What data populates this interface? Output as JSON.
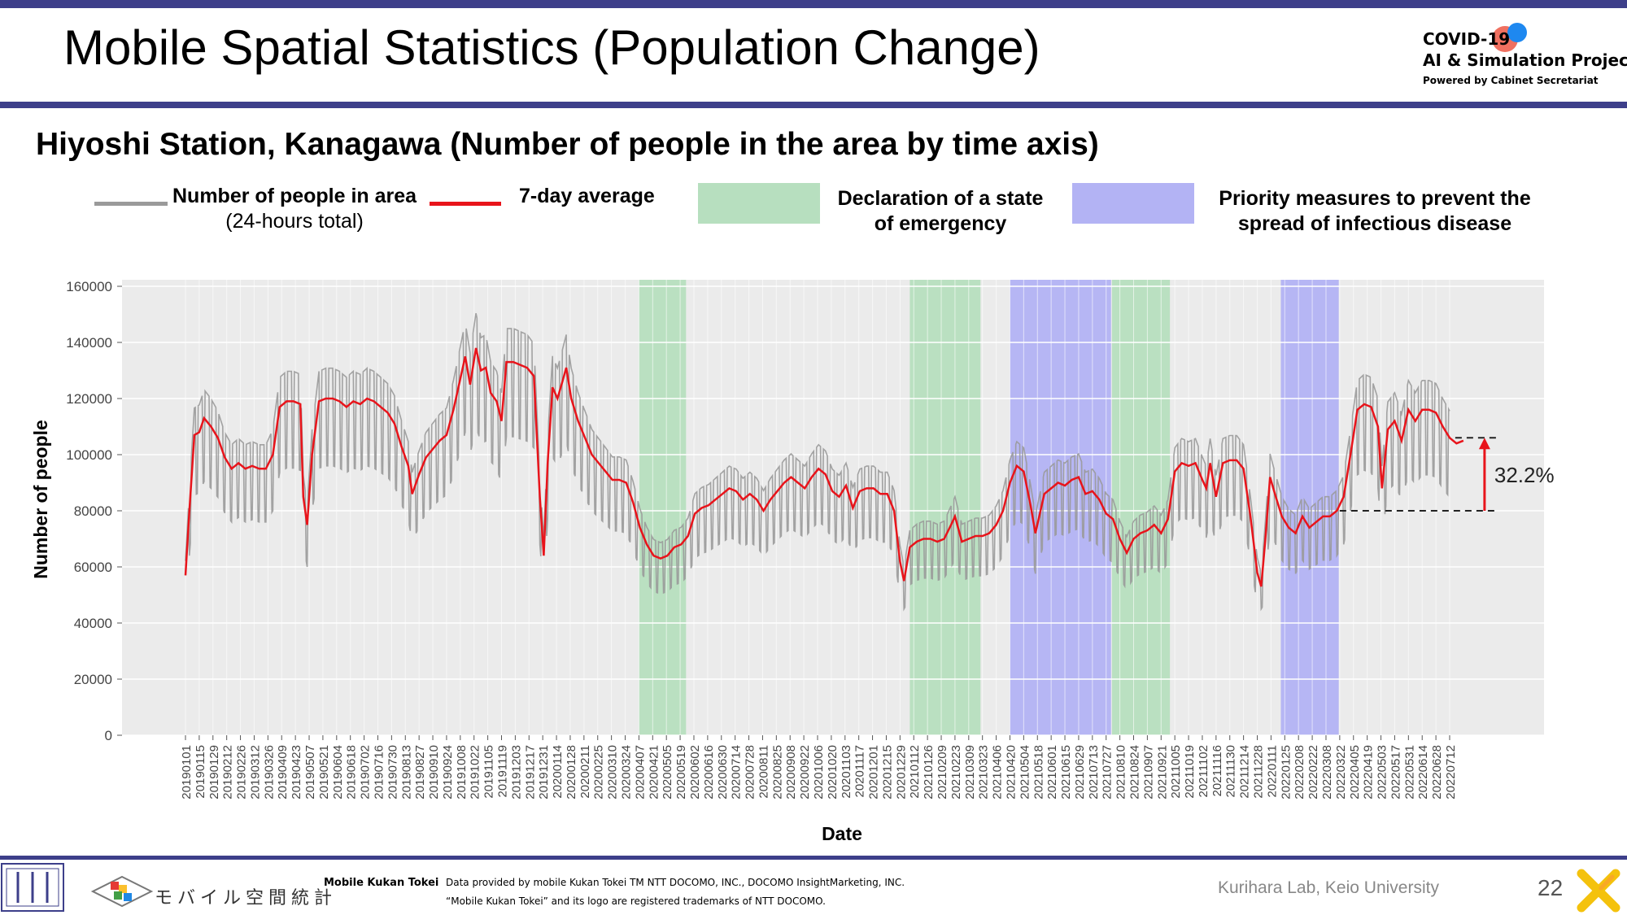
{
  "slide": {
    "title": "Mobile Spatial Statistics (Population Change)",
    "logo": {
      "line1": "COVID-19",
      "line2": "AI & Simulation Project",
      "line3": "Powered by Cabinet Secretariat"
    },
    "page_number": "22"
  },
  "legend": {
    "people": {
      "label": "Number of people in area",
      "sublabel": "(24-hours total)",
      "color": "#9a9a9a"
    },
    "avg": {
      "label": "7-day average",
      "color": "#e8141b"
    },
    "emergency": {
      "label_line1": "Declaration of a state",
      "label_line2": "of emergency",
      "color": "#b7dfbf"
    },
    "priority": {
      "label_line1": "Priority measures to prevent the",
      "label_line2": "spread of infectious disease",
      "color": "#b3b3f4"
    }
  },
  "colors": {
    "accent": "#3d3f8a",
    "plot_bg": "#ebebeb",
    "red": "#e8141b",
    "gray": "#9a9a9a"
  },
  "chart_data": {
    "type": "line",
    "title": "Hiyoshi Station, Kanagawa (Number of people in the area by time axis)",
    "xlabel": "Date",
    "ylabel": "Number of people",
    "ylim": [
      0,
      160000
    ],
    "yticks": [
      0,
      20000,
      40000,
      60000,
      80000,
      100000,
      120000,
      140000,
      160000
    ],
    "grid": true,
    "legend_position": "top",
    "x_range": [
      "20190101",
      "20220726"
    ],
    "x_tick_labels": [
      "20190101",
      "20190115",
      "20190129",
      "20190212",
      "20190226",
      "20190312",
      "20190326",
      "20190409",
      "20190423",
      "20190507",
      "20190521",
      "20190604",
      "20190618",
      "20190702",
      "20190716",
      "20190730",
      "20190813",
      "20190827",
      "20190910",
      "20190924",
      "20191008",
      "20191022",
      "20191105",
      "20191119",
      "20191203",
      "20191217",
      "20191231",
      "20200114",
      "20200128",
      "20200211",
      "20200225",
      "20200310",
      "20200324",
      "20200407",
      "20200421",
      "20200505",
      "20200519",
      "20200602",
      "20200616",
      "20200630",
      "20200714",
      "20200728",
      "20200811",
      "20200825",
      "20200908",
      "20200922",
      "20201006",
      "20201020",
      "20201103",
      "20201117",
      "20201201",
      "20201215",
      "20201229",
      "20210112",
      "20210126",
      "20210209",
      "20210223",
      "20210309",
      "20210323",
      "20210406",
      "20210420",
      "20210504",
      "20210518",
      "20210601",
      "20210615",
      "20210629",
      "20210713",
      "20210727",
      "20210810",
      "20210824",
      "20210907",
      "20210921",
      "20211005",
      "20211019",
      "20211102",
      "20211116",
      "20211130",
      "20211214",
      "20211228",
      "20220111",
      "20220125",
      "20220208",
      "20220222",
      "20220308",
      "20220322",
      "20220405",
      "20220419",
      "20220503",
      "20220517",
      "20220531",
      "20220614",
      "20220628",
      "20220712"
    ],
    "series": [
      {
        "name": "7-day average",
        "color": "#e8141b",
        "points": [
          [
            "20190101",
            57000
          ],
          [
            "20190105",
            80000
          ],
          [
            "20190110",
            107000
          ],
          [
            "20190115",
            108000
          ],
          [
            "20190120",
            113000
          ],
          [
            "20190127",
            110000
          ],
          [
            "20190203",
            106000
          ],
          [
            "20190210",
            99000
          ],
          [
            "20190217",
            95000
          ],
          [
            "20190224",
            97000
          ],
          [
            "20190303",
            95000
          ],
          [
            "20190310",
            96000
          ],
          [
            "20190317",
            95000
          ],
          [
            "20190324",
            95000
          ],
          [
            "20190331",
            100000
          ],
          [
            "20190407",
            117000
          ],
          [
            "20190414",
            119000
          ],
          [
            "20190421",
            119000
          ],
          [
            "20190428",
            118000
          ],
          [
            "20190501",
            85000
          ],
          [
            "20190505",
            75000
          ],
          [
            "20190510",
            100000
          ],
          [
            "20190517",
            119000
          ],
          [
            "20190524",
            120000
          ],
          [
            "20190531",
            120000
          ],
          [
            "20190607",
            119000
          ],
          [
            "20190614",
            117000
          ],
          [
            "20190621",
            119000
          ],
          [
            "20190628",
            118000
          ],
          [
            "20190705",
            120000
          ],
          [
            "20190712",
            119000
          ],
          [
            "20190719",
            117000
          ],
          [
            "20190726",
            115000
          ],
          [
            "20190802",
            111000
          ],
          [
            "20190809",
            103000
          ],
          [
            "20190816",
            96000
          ],
          [
            "20190820",
            86000
          ],
          [
            "20190827",
            93000
          ],
          [
            "20190903",
            99000
          ],
          [
            "20190910",
            102000
          ],
          [
            "20190917",
            105000
          ],
          [
            "20190924",
            107000
          ],
          [
            "20191001",
            116000
          ],
          [
            "20191008",
            127000
          ],
          [
            "20191013",
            135000
          ],
          [
            "20191018",
            125000
          ],
          [
            "20191024",
            138000
          ],
          [
            "20191029",
            130000
          ],
          [
            "20191103",
            131000
          ],
          [
            "20191108",
            122000
          ],
          [
            "20191114",
            119000
          ],
          [
            "20191119",
            112000
          ],
          [
            "20191124",
            133000
          ],
          [
            "20191201",
            133000
          ],
          [
            "20191208",
            132000
          ],
          [
            "20191215",
            131000
          ],
          [
            "20191222",
            128000
          ],
          [
            "20191228",
            85000
          ],
          [
            "20200101",
            64000
          ],
          [
            "20200105",
            97000
          ],
          [
            "20200110",
            124000
          ],
          [
            "20200115",
            120000
          ],
          [
            "20200120",
            126000
          ],
          [
            "20200124",
            131000
          ],
          [
            "20200129",
            120000
          ],
          [
            "20200205",
            112000
          ],
          [
            "20200212",
            106000
          ],
          [
            "20200219",
            100000
          ],
          [
            "20200226",
            97000
          ],
          [
            "20200304",
            94000
          ],
          [
            "20200311",
            91000
          ],
          [
            "20200318",
            91000
          ],
          [
            "20200325",
            90000
          ],
          [
            "20200401",
            83000
          ],
          [
            "20200408",
            74000
          ],
          [
            "20200415",
            68000
          ],
          [
            "20200422",
            64000
          ],
          [
            "20200429",
            63000
          ],
          [
            "20200506",
            64000
          ],
          [
            "20200513",
            67000
          ],
          [
            "20200520",
            68000
          ],
          [
            "20200527",
            71000
          ],
          [
            "20200603",
            79000
          ],
          [
            "20200610",
            81000
          ],
          [
            "20200617",
            82000
          ],
          [
            "20200624",
            84000
          ],
          [
            "20200701",
            86000
          ],
          [
            "20200708",
            88000
          ],
          [
            "20200715",
            87000
          ],
          [
            "20200722",
            84000
          ],
          [
            "20200729",
            86000
          ],
          [
            "20200805",
            84000
          ],
          [
            "20200812",
            80000
          ],
          [
            "20200819",
            84000
          ],
          [
            "20200826",
            87000
          ],
          [
            "20200902",
            90000
          ],
          [
            "20200909",
            92000
          ],
          [
            "20200916",
            90000
          ],
          [
            "20200923",
            88000
          ],
          [
            "20200930",
            92000
          ],
          [
            "20201007",
            95000
          ],
          [
            "20201014",
            93000
          ],
          [
            "20201021",
            87000
          ],
          [
            "20201028",
            85000
          ],
          [
            "20201104",
            89000
          ],
          [
            "20201111",
            81000
          ],
          [
            "20201118",
            87000
          ],
          [
            "20201125",
            88000
          ],
          [
            "20201202",
            88000
          ],
          [
            "20201209",
            86000
          ],
          [
            "20201216",
            86000
          ],
          [
            "20201223",
            80000
          ],
          [
            "20201229",
            62000
          ],
          [
            "20210102",
            55000
          ],
          [
            "20210108",
            67000
          ],
          [
            "20210115",
            69000
          ],
          [
            "20210122",
            70000
          ],
          [
            "20210129",
            70000
          ],
          [
            "20210205",
            69000
          ],
          [
            "20210212",
            70000
          ],
          [
            "20210219",
            75000
          ],
          [
            "20210223",
            78000
          ],
          [
            "20210302",
            69000
          ],
          [
            "20210309",
            70000
          ],
          [
            "20210316",
            71000
          ],
          [
            "20210323",
            71000
          ],
          [
            "20210330",
            72000
          ],
          [
            "20210406",
            75000
          ],
          [
            "20210413",
            80000
          ],
          [
            "20210420",
            90000
          ],
          [
            "20210427",
            96000
          ],
          [
            "20210504",
            94000
          ],
          [
            "20210511",
            82000
          ],
          [
            "20210516",
            72000
          ],
          [
            "20210525",
            86000
          ],
          [
            "20210601",
            88000
          ],
          [
            "20210608",
            90000
          ],
          [
            "20210615",
            89000
          ],
          [
            "20210622",
            91000
          ],
          [
            "20210629",
            92000
          ],
          [
            "20210706",
            86000
          ],
          [
            "20210713",
            87000
          ],
          [
            "20210720",
            84000
          ],
          [
            "20210727",
            79000
          ],
          [
            "20210803",
            77000
          ],
          [
            "20210810",
            70000
          ],
          [
            "20210817",
            65000
          ],
          [
            "20210824",
            70000
          ],
          [
            "20210831",
            72000
          ],
          [
            "20210907",
            73000
          ],
          [
            "20210914",
            75000
          ],
          [
            "20210921",
            72000
          ],
          [
            "20210928",
            77000
          ],
          [
            "20211005",
            94000
          ],
          [
            "20211012",
            97000
          ],
          [
            "20211019",
            96000
          ],
          [
            "20211026",
            97000
          ],
          [
            "20211102",
            91000
          ],
          [
            "20211106",
            88000
          ],
          [
            "20211110",
            97000
          ],
          [
            "20211116",
            85000
          ],
          [
            "20211123",
            97000
          ],
          [
            "20211130",
            98000
          ],
          [
            "20211207",
            98000
          ],
          [
            "20211214",
            95000
          ],
          [
            "20211221",
            78000
          ],
          [
            "20211228",
            58000
          ],
          [
            "20220101",
            53000
          ],
          [
            "20220105",
            69000
          ],
          [
            "20220110",
            92000
          ],
          [
            "20220115",
            86000
          ],
          [
            "20220122",
            78000
          ],
          [
            "20220129",
            74000
          ],
          [
            "20220205",
            72000
          ],
          [
            "20220212",
            78000
          ],
          [
            "20220219",
            74000
          ],
          [
            "20220226",
            76000
          ],
          [
            "20220305",
            78000
          ],
          [
            "20220312",
            78000
          ],
          [
            "20220319",
            80000
          ],
          [
            "20220326",
            85000
          ],
          [
            "20220402",
            100000
          ],
          [
            "20220409",
            116000
          ],
          [
            "20220416",
            118000
          ],
          [
            "20220423",
            117000
          ],
          [
            "20220430",
            110000
          ],
          [
            "20220504",
            88000
          ],
          [
            "20220510",
            109000
          ],
          [
            "20220517",
            112000
          ],
          [
            "20220524",
            105000
          ],
          [
            "20220531",
            116000
          ],
          [
            "20220607",
            112000
          ],
          [
            "20220614",
            116000
          ],
          [
            "20220621",
            116000
          ],
          [
            "20220628",
            115000
          ],
          [
            "20220705",
            110000
          ],
          [
            "20220712",
            106000
          ],
          [
            "20220719",
            104000
          ],
          [
            "20220726",
            105000
          ]
        ]
      }
    ],
    "raw_series": {
      "name": "Number of people in area (24-hours total)",
      "color": "#9a9a9a",
      "weekday_weekend_spread_approx": [
        45000,
        155000
      ]
    },
    "shaded_periods": [
      {
        "type": "Declaration of a state of emergency",
        "start": "20200407",
        "end": "20200525"
      },
      {
        "type": "Declaration of a state of emergency",
        "start": "20210108",
        "end": "20210321"
      },
      {
        "type": "Priority measures to prevent the spread of infectious disease",
        "start": "20210420",
        "end": "20210801"
      },
      {
        "type": "Declaration of a state of emergency",
        "start": "20210802",
        "end": "20210930"
      },
      {
        "type": "Priority measures to prevent the spread of infectious disease",
        "start": "20220121",
        "end": "20220321"
      }
    ],
    "annotations": [
      {
        "text": "32.2%",
        "from_value": 80000,
        "to_value": 106000,
        "from_date": "20220322",
        "to_date": "20220726"
      }
    ]
  },
  "footer": {
    "brand": "Mobile Kukan Tokei",
    "credit_line1": "Data provided by mobile Kukan Tokei TM NTT DOCOMO, INC., DOCOMO InsightMarketing, INC.",
    "credit_line2": "“Mobile Kukan Tokei” and its logo are registered trademarks of NTT DOCOMO.",
    "lab": "Kurihara Lab, Keio University",
    "kukan_logo_text": "モバイル空間統計"
  }
}
